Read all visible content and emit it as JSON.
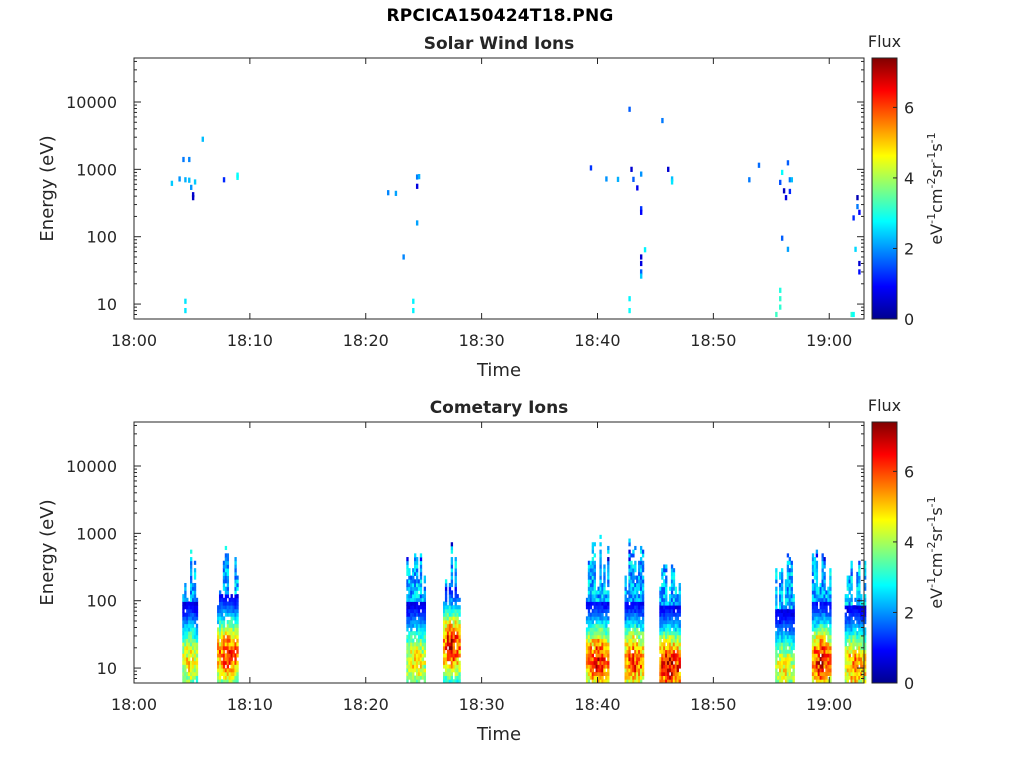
{
  "figure_title": "RPCICA150424T18.PNG",
  "chart_data": [
    {
      "type": "heatmap",
      "title": "Solar Wind Ions",
      "xlabel": "Time",
      "ylabel": "Energy (eV)",
      "y_scale": "log",
      "xlim": [
        "18:00",
        "19:03"
      ],
      "ylim": [
        6,
        45000
      ],
      "x_ticks": [
        "18:00",
        "18:10",
        "18:20",
        "18:30",
        "18:40",
        "18:50",
        "19:00"
      ],
      "y_ticks": [
        10,
        100,
        1000,
        10000
      ],
      "y_tick_labels": [
        "10",
        "100",
        "1000",
        "10000"
      ],
      "colorbar": {
        "title": "Flux",
        "unit_label": "eV-1cm-2sr-1s-1",
        "min": 0,
        "max": 7.4,
        "ticks": [
          0,
          2,
          4,
          6
        ]
      },
      "cells": [
        [
          "18:04:20",
          11,
          2.6
        ],
        [
          "18:04:20",
          8,
          2.6
        ],
        [
          "18:03:10",
          620,
          2.4
        ],
        [
          "18:03:50",
          720,
          2.0
        ],
        [
          "18:04:10",
          1400,
          1.8
        ],
        [
          "18:04:40",
          1400,
          1.9
        ],
        [
          "18:04:20",
          700,
          2.2
        ],
        [
          "18:04:40",
          690,
          2.3
        ],
        [
          "18:04:50",
          540,
          2.0
        ],
        [
          "18:05:00",
          420,
          0.6
        ],
        [
          "18:05:00",
          380,
          0.5
        ],
        [
          "18:05:10",
          650,
          2.4
        ],
        [
          "18:05:50",
          2800,
          2.3
        ],
        [
          "18:07:40",
          700,
          1.2
        ],
        [
          "18:08:50",
          820,
          2.8
        ],
        [
          "18:08:50",
          760,
          2.8
        ],
        [
          "18:21:50",
          450,
          1.9
        ],
        [
          "18:22:30",
          440,
          2.1
        ],
        [
          "18:23:10",
          50,
          1.9
        ],
        [
          "18:24:00",
          11,
          2.7
        ],
        [
          "18:24:00",
          8,
          2.7
        ],
        [
          "18:24:20",
          770,
          1.8
        ],
        [
          "18:24:20",
          560,
          0.7
        ],
        [
          "18:24:30",
          780,
          2.2
        ],
        [
          "18:24:20",
          160,
          2.1
        ],
        [
          "18:39:20",
          1050,
          1.3
        ],
        [
          "18:40:40",
          720,
          2.0
        ],
        [
          "18:41:40",
          710,
          2.2
        ],
        [
          "18:42:40",
          7800,
          1.6
        ],
        [
          "18:42:50",
          1000,
          0.6
        ],
        [
          "18:43:00",
          710,
          1.6
        ],
        [
          "18:43:20",
          530,
          0.8
        ],
        [
          "18:43:40",
          850,
          2.0
        ],
        [
          "18:43:40",
          260,
          1.3
        ],
        [
          "18:43:40",
          230,
          0.9
        ],
        [
          "18:43:40",
          50,
          0.6
        ],
        [
          "18:43:40",
          40,
          0.7
        ],
        [
          "18:43:40",
          30,
          1.6
        ],
        [
          "18:43:40",
          26,
          2.4
        ],
        [
          "18:44:00",
          64,
          2.7
        ],
        [
          "18:42:40",
          12,
          2.7
        ],
        [
          "18:42:40",
          8,
          2.8
        ],
        [
          "18:45:30",
          5300,
          1.8
        ],
        [
          "18:46:00",
          1000,
          0.6
        ],
        [
          "18:46:20",
          720,
          2.3
        ],
        [
          "18:46:20",
          650,
          2.6
        ],
        [
          "18:53:00",
          700,
          1.8
        ],
        [
          "18:53:50",
          1150,
          1.7
        ],
        [
          "18:55:40",
          640,
          1.5
        ],
        [
          "18:55:50",
          900,
          2.8
        ],
        [
          "18:56:00",
          480,
          0.5
        ],
        [
          "18:56:10",
          380,
          0.7
        ],
        [
          "18:56:20",
          1250,
          1.6
        ],
        [
          "18:56:30",
          700,
          1.8
        ],
        [
          "18:56:30",
          470,
          1.2
        ],
        [
          "18:56:40",
          700,
          2.3
        ],
        [
          "18:55:50",
          95,
          1.6
        ],
        [
          "18:56:20",
          65,
          2.1
        ],
        [
          "18:55:40",
          16,
          3.0
        ],
        [
          "18:55:40",
          12,
          3.1
        ],
        [
          "18:55:40",
          9,
          3.1
        ],
        [
          "18:55:20",
          7,
          3.2
        ],
        [
          "19:01:50",
          7,
          3.1
        ],
        [
          "19:02:00",
          7,
          2.8
        ],
        [
          "19:02:00",
          190,
          1.2
        ],
        [
          "19:02:20",
          380,
          0.4
        ],
        [
          "19:02:20",
          280,
          1.8
        ],
        [
          "19:02:30",
          230,
          0.9
        ],
        [
          "19:02:30",
          40,
          0.6
        ],
        [
          "19:02:30",
          30,
          1.0
        ],
        [
          "19:02:10",
          65,
          2.5
        ]
      ]
    },
    {
      "type": "heatmap",
      "title": "Cometary Ions",
      "xlabel": "Time",
      "ylabel": "Energy (eV)",
      "y_scale": "log",
      "xlim": [
        "18:00",
        "19:03"
      ],
      "ylim": [
        6,
        45000
      ],
      "x_ticks": [
        "18:00",
        "18:10",
        "18:20",
        "18:30",
        "18:40",
        "18:50",
        "19:00"
      ],
      "y_ticks": [
        10,
        100,
        1000,
        10000
      ],
      "y_tick_labels": [
        "10",
        "100",
        "1000",
        "10000"
      ],
      "colorbar": {
        "title": "Flux",
        "unit_label": "eV-1cm-2sr-1s-1",
        "min": 0,
        "max": 7.4,
        "ticks": [
          0,
          2,
          4,
          6
        ]
      },
      "bursts": [
        {
          "start": "18:04:10",
          "end": "18:05:20",
          "emin": 6,
          "emax": 700,
          "peak_energy": 12,
          "peak_flux": 4.9
        },
        {
          "start": "18:07:10",
          "end": "18:08:50",
          "emin": 6,
          "emax": 740,
          "peak_energy": 15,
          "peak_flux": 6.2
        },
        {
          "start": "18:23:30",
          "end": "18:25:00",
          "emin": 6,
          "emax": 650,
          "peak_energy": 12,
          "peak_flux": 4.9
        },
        {
          "start": "18:26:40",
          "end": "18:28:00",
          "emin": 6,
          "emax": 850,
          "peak_energy": 20,
          "peak_flux": 6.6
        },
        {
          "start": "18:39:00",
          "end": "18:40:50",
          "emin": 6,
          "emax": 1050,
          "peak_energy": 12,
          "peak_flux": 6.4
        },
        {
          "start": "18:42:20",
          "end": "18:43:50",
          "emin": 6,
          "emax": 1250,
          "peak_energy": 12,
          "peak_flux": 6.2
        },
        {
          "start": "18:45:20",
          "end": "18:47:00",
          "emin": 6,
          "emax": 900,
          "peak_energy": 10,
          "peak_flux": 6.8
        },
        {
          "start": "18:55:20",
          "end": "18:56:50",
          "emin": 6,
          "emax": 650,
          "peak_energy": 9,
          "peak_flux": 4.8
        },
        {
          "start": "18:58:30",
          "end": "19:00:00",
          "emin": 6,
          "emax": 1150,
          "peak_energy": 12,
          "peak_flux": 6.6
        },
        {
          "start": "19:01:20",
          "end": "19:03:00",
          "emin": 6,
          "emax": 600,
          "peak_energy": 10,
          "peak_flux": 5.6
        }
      ]
    }
  ]
}
